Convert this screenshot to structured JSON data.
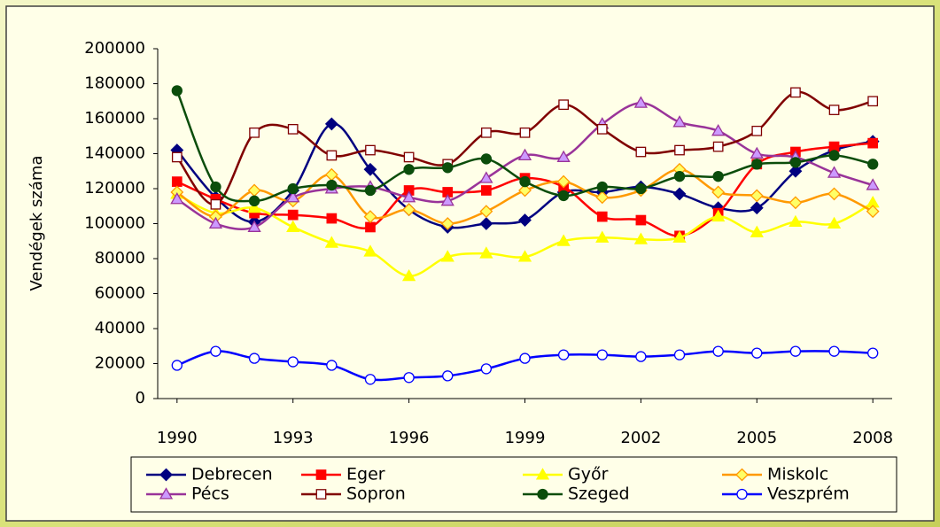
{
  "chart_data": {
    "type": "line",
    "y_label": "Vendégek száma",
    "x": [
      1990,
      1991,
      1992,
      1993,
      1994,
      1995,
      1996,
      1997,
      1998,
      1999,
      2000,
      2001,
      2002,
      2003,
      2004,
      2005,
      2006,
      2007,
      2008
    ],
    "xlim": [
      1989.5,
      2008.5
    ],
    "xticks": [
      1990,
      1993,
      1996,
      1999,
      2002,
      2005,
      2008
    ],
    "ylim": [
      0,
      200000
    ],
    "yticks": [
      0,
      20000,
      40000,
      60000,
      80000,
      100000,
      120000,
      140000,
      160000,
      180000,
      200000
    ],
    "grid": false,
    "smooth": true,
    "legend": "bottom",
    "series": [
      {
        "name": "Debrecen",
        "color": "#000080",
        "marker": "diamond",
        "marker_fill": "#000080",
        "values": [
          142000,
          115000,
          101000,
          119000,
          157000,
          131000,
          108000,
          98000,
          100000,
          102000,
          118000,
          118000,
          121000,
          117000,
          109000,
          109000,
          130000,
          142000,
          147000
        ]
      },
      {
        "name": "Eger",
        "color": "#ff0000",
        "marker": "square",
        "marker_fill": "#ff0000",
        "values": [
          124000,
          114000,
          106000,
          105000,
          103000,
          98000,
          119000,
          118000,
          119000,
          126000,
          121000,
          104000,
          102000,
          93000,
          106000,
          134000,
          141000,
          144000,
          146000
        ]
      },
      {
        "name": "Győr",
        "color": "#ffff00",
        "marker": "triangle",
        "marker_fill": "#ffff00",
        "values": [
          117000,
          106000,
          109000,
          98000,
          89000,
          84000,
          70000,
          81000,
          83000,
          81000,
          90000,
          92000,
          91000,
          92000,
          104000,
          95000,
          101000,
          100000,
          112000
        ]
      },
      {
        "name": "Miskolc",
        "color": "#ff9900",
        "marker": "diamond",
        "marker_fill": "#ffff66",
        "values": [
          118000,
          104000,
          119000,
          113000,
          128000,
          104000,
          108000,
          100000,
          107000,
          119000,
          124000,
          115000,
          119000,
          131000,
          118000,
          116000,
          112000,
          117000,
          107000
        ]
      },
      {
        "name": "Pécs",
        "color": "#993399",
        "marker": "triangle",
        "marker_fill": "#cc99ff",
        "values": [
          114000,
          100000,
          98000,
          115000,
          120000,
          121000,
          115000,
          113000,
          126000,
          139000,
          138000,
          157000,
          169000,
          158000,
          153000,
          140000,
          138000,
          129000,
          122000
        ]
      },
      {
        "name": "Sopron",
        "color": "#800000",
        "marker": "square",
        "marker_fill": "#ffffff",
        "values": [
          138000,
          111000,
          152000,
          154000,
          139000,
          142000,
          138000,
          134000,
          152000,
          152000,
          168000,
          154000,
          141000,
          142000,
          144000,
          153000,
          175000,
          165000,
          170000
        ]
      },
      {
        "name": "Szeged",
        "color": "#0b4d0b",
        "marker": "circle",
        "marker_fill": "#0b4d0b",
        "values": [
          176000,
          121000,
          113000,
          120000,
          122000,
          119000,
          131000,
          132000,
          137000,
          124000,
          116000,
          121000,
          120000,
          127000,
          127000,
          134000,
          135000,
          139000,
          134000
        ]
      },
      {
        "name": "Veszprém",
        "color": "#0000ff",
        "marker": "circle",
        "marker_fill": "#ffffff",
        "values": [
          19000,
          27000,
          23000,
          21000,
          19000,
          11000,
          12000,
          13000,
          17000,
          23000,
          25000,
          25000,
          24000,
          25000,
          27000,
          26000,
          27000,
          27000,
          26000
        ]
      }
    ]
  }
}
